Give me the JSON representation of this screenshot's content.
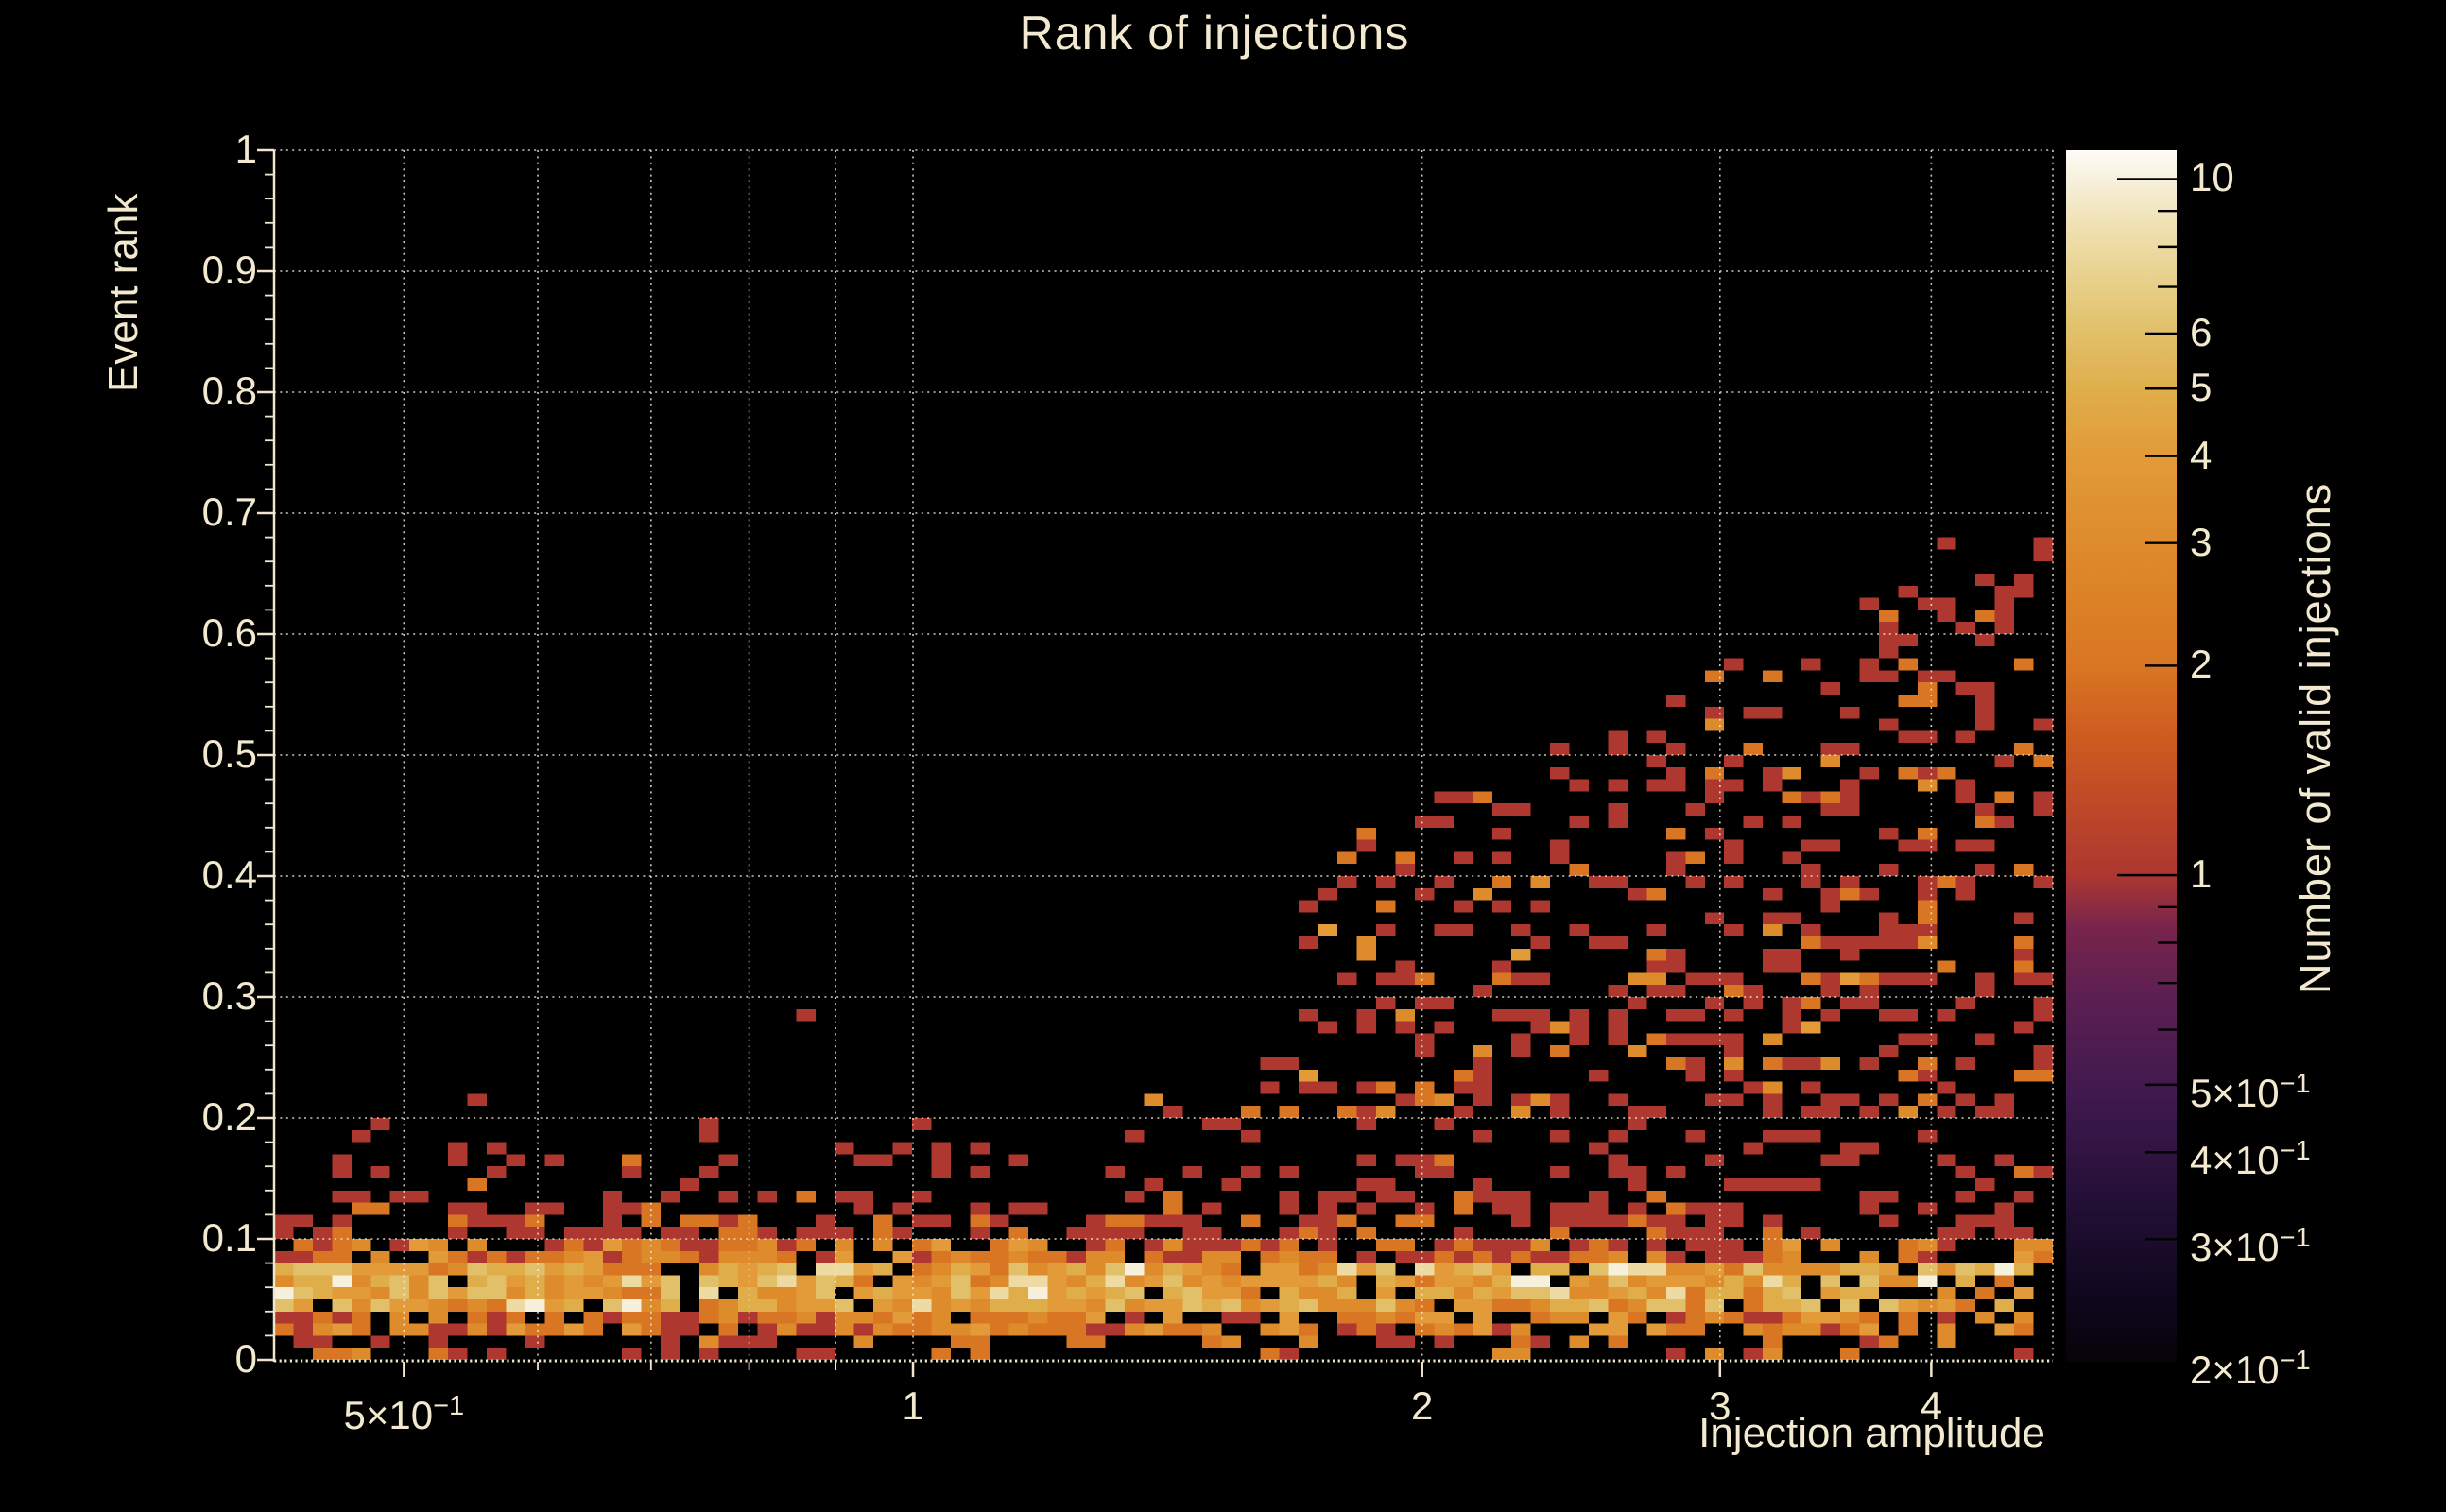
{
  "page": {
    "background": "#000000",
    "text_color": "#F2E9CF"
  },
  "title": {
    "text": "Rank of injections"
  },
  "chart_data": {
    "type": "heatmap",
    "title": "Rank of injections",
    "xlabel": "Injection amplitude",
    "ylabel": "Event rank",
    "zlabel": "Number of valid injections",
    "x_scale": "log",
    "y_scale": "linear",
    "z_scale": "log",
    "xlim": [
      0.419,
      4.72
    ],
    "ylim": [
      0,
      1
    ],
    "zlim": [
      0.2,
      11
    ],
    "grid": true,
    "x_ticks": [
      {
        "v": 0.5,
        "label": "5×10",
        "sup": "−1"
      },
      {
        "v": 1,
        "label": "1"
      },
      {
        "v": 2,
        "label": "2"
      },
      {
        "v": 3,
        "label": "3"
      },
      {
        "v": 4,
        "label": "4"
      }
    ],
    "x_minor_ticks": [
      0.6,
      0.7,
      0.8,
      0.9
    ],
    "y_ticks": [
      {
        "v": 0,
        "label": "0"
      },
      {
        "v": 0.1,
        "label": "0.1"
      },
      {
        "v": 0.2,
        "label": "0.2"
      },
      {
        "v": 0.3,
        "label": "0.3"
      },
      {
        "v": 0.4,
        "label": "0.4"
      },
      {
        "v": 0.5,
        "label": "0.5"
      },
      {
        "v": 0.6,
        "label": "0.6"
      },
      {
        "v": 0.7,
        "label": "0.7"
      },
      {
        "v": 0.8,
        "label": "0.8"
      },
      {
        "v": 0.9,
        "label": "0.9"
      },
      {
        "v": 1,
        "label": "1"
      }
    ],
    "y_minor_step": 0.02,
    "z_ticks": [
      {
        "v": 10,
        "label": "10",
        "long": true
      },
      {
        "v": 6,
        "label": "6"
      },
      {
        "v": 5,
        "label": "5"
      },
      {
        "v": 4,
        "label": "4"
      },
      {
        "v": 3,
        "label": "3"
      },
      {
        "v": 2,
        "label": "2"
      },
      {
        "v": 1,
        "label": "1",
        "long": true
      },
      {
        "v": 0.5,
        "label": "5×10",
        "sup": "−1"
      },
      {
        "v": 0.4,
        "label": "4×10",
        "sup": "−1"
      },
      {
        "v": 0.3,
        "label": "3×10",
        "sup": "−1"
      },
      {
        "v": 0.2,
        "label": "2×10",
        "sup": "−1",
        "edge": true
      }
    ],
    "z_minor_ticks": [
      9,
      8,
      7,
      0.9,
      0.8,
      0.7,
      0.6
    ],
    "palette_stops": [
      [
        0.0,
        "#06030A"
      ],
      [
        0.06,
        "#10081F"
      ],
      [
        0.14,
        "#251038"
      ],
      [
        0.22,
        "#40194E"
      ],
      [
        0.3,
        "#5C1F52"
      ],
      [
        0.36,
        "#79254B"
      ],
      [
        0.402,
        "#AE3730"
      ],
      [
        0.46,
        "#BE4928"
      ],
      [
        0.52,
        "#CE5D20"
      ],
      [
        0.575,
        "#D97623"
      ],
      [
        0.64,
        "#DC8426"
      ],
      [
        0.7,
        "#DF9030"
      ],
      [
        0.748,
        "#E29B38"
      ],
      [
        0.8,
        "#DFAD49"
      ],
      [
        0.85,
        "#E1C06A"
      ],
      [
        0.9,
        "#E9D391"
      ],
      [
        0.94,
        "#F0E2B5"
      ],
      [
        0.976,
        "#F7F0DC"
      ],
      [
        1.0,
        "#FDFCF7"
      ]
    ],
    "grid_color": "#F5EEDA",
    "axis_color": "#EFE6CC",
    "bins": {
      "nx": 92,
      "ny": 100
    },
    "distribution": {
      "seed": 20,
      "note": "dense high-count band at event rank 0.02-0.11 across all amplitudes; sparse counts (mostly 1-3) spreading upward for amplitude > 1.5, reaching rank ~0.68 near amplitude 4.1",
      "band_rows": [
        {
          "from": 0,
          "to": 1,
          "p": 0.36,
          "vals": [
            1,
            2,
            3
          ],
          "w": [
            50,
            30,
            20
          ]
        },
        {
          "from": 2,
          "to": 3,
          "p": 0.8,
          "vals": [
            1,
            2,
            3,
            4
          ],
          "w": [
            25,
            30,
            28,
            17
          ]
        },
        {
          "from": 4,
          "to": 7,
          "p": 0.93,
          "vals": [
            2,
            3,
            4,
            5,
            6,
            8,
            10
          ],
          "w": [
            10,
            18,
            24,
            21,
            14,
            9,
            4
          ]
        },
        {
          "from": 8,
          "to": 9,
          "p": 0.78,
          "vals": [
            1,
            2,
            3,
            4
          ],
          "w": [
            38,
            30,
            24,
            8
          ]
        },
        {
          "from": 10,
          "to": 11,
          "p": 0.48,
          "vals": [
            1,
            2
          ],
          "w": [
            70,
            30
          ]
        },
        {
          "from": 12,
          "to": 13,
          "p": 0.26,
          "vals": [
            1,
            2
          ],
          "w": [
            82,
            18
          ],
          "fringe": true
        },
        {
          "from": 14,
          "to": 16,
          "p": 0.15,
          "vals": [
            1,
            2
          ],
          "w": [
            90,
            10
          ],
          "fringe": true
        },
        {
          "from": 17,
          "to": 19,
          "p": 0.09,
          "vals": [
            1
          ],
          "w": [
            1
          ],
          "fringe": true
        }
      ],
      "right_thinning": [
        {
          "amp_above": 3.35,
          "factor": 0.72
        },
        {
          "amp_above": 4.25,
          "factor": 0.85
        }
      ],
      "fringe_logx_boost": 1.0,
      "envelope_logx_rank": [
        [
          -0.38,
          0.115
        ],
        [
          0.0,
          0.125
        ],
        [
          0.08,
          0.17
        ],
        [
          0.18,
          0.3
        ],
        [
          0.26,
          0.43
        ],
        [
          0.301,
          0.46
        ],
        [
          0.4,
          0.52
        ],
        [
          0.48,
          0.575
        ],
        [
          0.55,
          0.62
        ],
        [
          0.63,
          0.66
        ],
        [
          0.675,
          0.685
        ]
      ],
      "scatter_density_logx": [
        [
          0.08,
          0.07
        ],
        [
          0.18,
          0.18
        ],
        [
          0.301,
          0.3
        ],
        [
          0.48,
          0.42
        ],
        [
          0.675,
          0.5
        ]
      ],
      "scatter_top_fade": 0.45,
      "scatter_vals": [
        1,
        2,
        3,
        4
      ],
      "scatter_w": [
        72,
        18,
        8,
        2
      ],
      "outlier_cells": [
        {
          "amp": 0.87,
          "rank": 0.29,
          "count": 1
        },
        {
          "amp": 0.552,
          "rank": 0.215,
          "count": 1
        },
        {
          "amp": 1.83,
          "rank": 0.42,
          "count": 1
        },
        {
          "amp": 4.08,
          "rank": 0.675,
          "count": 1
        },
        {
          "amp": 4.32,
          "rank": 0.64,
          "count": 1
        }
      ]
    }
  }
}
